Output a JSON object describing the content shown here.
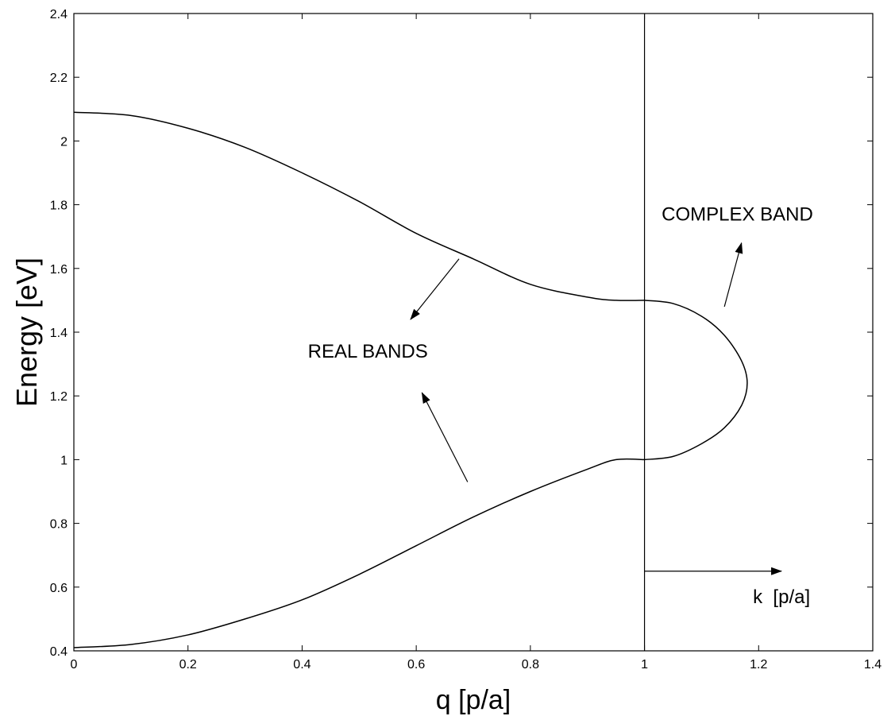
{
  "chart_data": {
    "type": "line",
    "xlabel": "q [p/a]",
    "ylabel": "Energy [eV]",
    "xlim": [
      0,
      1.4
    ],
    "ylim": [
      0.4,
      2.4
    ],
    "x_ticks": [
      "0",
      "0.2",
      "0.4",
      "0.6",
      "0.8",
      "1",
      "1.2",
      "1.4"
    ],
    "y_ticks": [
      "0.4",
      "0.6",
      "0.8",
      "1",
      "1.2",
      "1.4",
      "1.6",
      "1.8",
      "2",
      "2.2",
      "2.4"
    ],
    "grid": false,
    "vertical_line_x": 1,
    "series": [
      {
        "x": [
          0,
          0.1,
          0.2,
          0.3,
          0.4,
          0.5,
          0.6,
          0.7,
          0.8,
          0.9,
          0.95,
          1.0
        ],
        "y": [
          2.09,
          2.08,
          2.04,
          1.98,
          1.9,
          1.81,
          1.71,
          1.63,
          1.55,
          1.51,
          1.5,
          1.5
        ]
      },
      {
        "x": [
          0,
          0.1,
          0.2,
          0.3,
          0.4,
          0.5,
          0.6,
          0.7,
          0.8,
          0.9,
          0.95,
          1.0
        ],
        "y": [
          0.41,
          0.42,
          0.45,
          0.5,
          0.56,
          0.64,
          0.73,
          0.82,
          0.9,
          0.97,
          1.0,
          1.0
        ]
      },
      {
        "x": [
          1.0,
          1.05,
          1.1,
          1.14,
          1.17,
          1.18,
          1.17,
          1.14,
          1.1,
          1.05,
          1.0
        ],
        "y": [
          1.5,
          1.49,
          1.45,
          1.39,
          1.31,
          1.24,
          1.17,
          1.1,
          1.05,
          1.01,
          1.0
        ]
      }
    ],
    "annotations": [
      {
        "text": "REAL BANDS",
        "x": 0.41,
        "y": 1.32
      },
      {
        "text": "COMPLEX BAND",
        "x": 1.03,
        "y": 1.75
      },
      {
        "text": "k  [p/a]",
        "x": 1.19,
        "y": 0.55
      }
    ],
    "arrows": [
      {
        "from": [
          0.675,
          1.63
        ],
        "to": [
          0.59,
          1.44
        ]
      },
      {
        "from": [
          0.69,
          0.93
        ],
        "to": [
          0.61,
          1.21
        ]
      },
      {
        "from": [
          1.14,
          1.48
        ],
        "to": [
          1.17,
          1.68
        ]
      },
      {
        "from": [
          1.0,
          0.65
        ],
        "to": [
          1.24,
          0.65
        ]
      }
    ]
  }
}
